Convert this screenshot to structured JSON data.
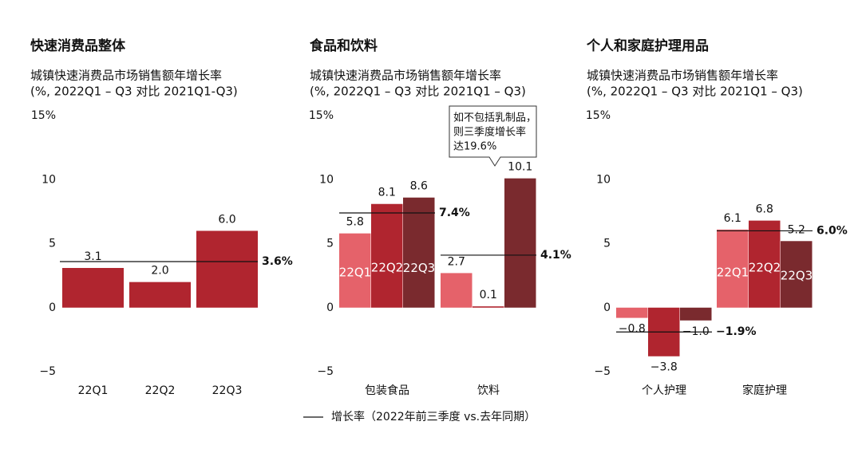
{
  "chart_data": [
    {
      "type": "bar",
      "title": "快速消费品整体",
      "subtitle": [
        "城镇快速消费品市场销售额年增长率",
        "(%, 2022Q1 – Q3 对比 2021Q1-Q3)"
      ],
      "categories": [
        "22Q1",
        "22Q2",
        "22Q3"
      ],
      "values": [
        3.1,
        2.0,
        6.0
      ],
      "value_labels": [
        "3.1",
        "2.0",
        "6.0"
      ],
      "color": "#b0252f",
      "reference_lines": [
        {
          "value": 3.6,
          "label": "3.6%"
        }
      ],
      "ylim": [
        -5,
        15
      ],
      "yticks": [
        {
          "value": -5,
          "label": "−5"
        },
        0,
        5,
        10,
        {
          "value": 15,
          "label": "15%"
        }
      ]
    },
    {
      "type": "grouped_bar",
      "title": "食品和饮料",
      "subtitle": [
        "城镇快速消费品市场销售额年增长率",
        "(%, 2022Q1 – Q3 对比 2021Q1 – Q3)"
      ],
      "categories": [
        "包装食品",
        "饮料"
      ],
      "series": [
        {
          "name": "22Q1",
          "color": "#e5626a",
          "values": [
            5.8,
            2.7
          ]
        },
        {
          "name": "22Q2",
          "color": "#b0252f",
          "values": [
            8.1,
            0.1
          ]
        },
        {
          "name": "22Q3",
          "color": "#7a2a2e",
          "values": [
            8.6,
            10.1
          ]
        }
      ],
      "reference_lines": [
        {
          "value": 7.4,
          "label": "7.4%"
        },
        {
          "value": 4.1,
          "label": "4.1%"
        }
      ],
      "annotation": [
        "如不包括乳制品，",
        "则三季度增长率",
        "达19.6%"
      ],
      "ylim": [
        -5,
        15
      ],
      "yticks": [
        {
          "value": -5,
          "label": "−5"
        },
        0,
        5,
        10,
        {
          "value": 15,
          "label": "15%"
        }
      ]
    },
    {
      "type": "grouped_bar",
      "title": "个人和家庭护理用品",
      "subtitle": [
        "城镇快速消费品市场销售额年增长率",
        "(%, 2022Q1 – Q3 对比 2021Q1 – Q3)"
      ],
      "categories": [
        "个人护理",
        "家庭护理"
      ],
      "series": [
        {
          "name": "22Q1",
          "color": "#e5626a",
          "values": [
            -0.8,
            6.1
          ],
          "value_labels": [
            "−0.8",
            "6.1"
          ]
        },
        {
          "name": "22Q2",
          "color": "#b0252f",
          "values": [
            -3.8,
            6.8
          ],
          "value_labels": [
            "−3.8",
            "6.8"
          ]
        },
        {
          "name": "22Q3",
          "color": "#7a2a2e",
          "values": [
            -1.0,
            5.2
          ],
          "value_labels": [
            "−1.0",
            "5.2"
          ]
        }
      ],
      "reference_lines": [
        {
          "value": -1.9,
          "label": "−1.9%"
        },
        {
          "value": 6.0,
          "label": "6.0%"
        }
      ],
      "ylim": [
        -5,
        15
      ],
      "yticks": [
        {
          "value": -5,
          "label": "−5"
        },
        0,
        5,
        10,
        {
          "value": 15,
          "label": "15%"
        }
      ]
    }
  ],
  "legend_label": "增长率（2022年前三季度 vs.去年同期）"
}
